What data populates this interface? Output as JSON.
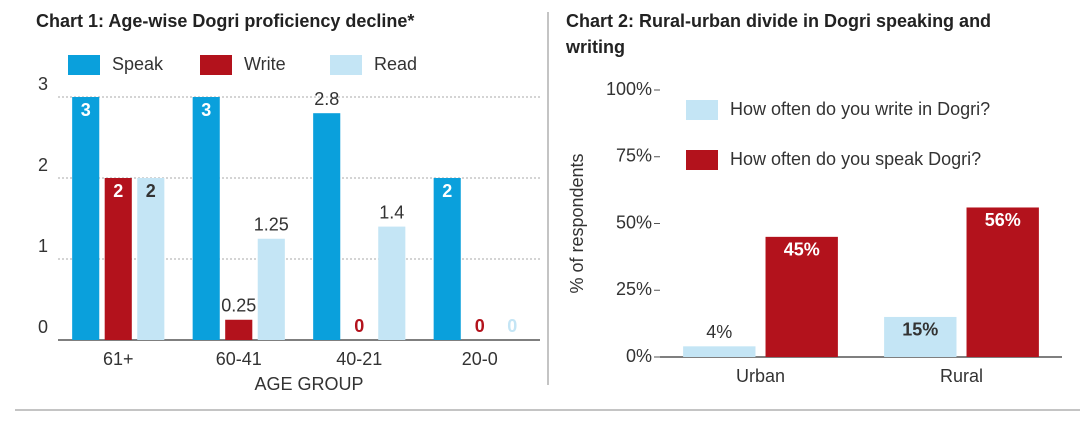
{
  "chart_data": [
    {
      "type": "bar",
      "title": "Chart 1: Age-wise Dogri proficiency decline*",
      "categories": [
        "61+",
        "60-41",
        "40-21",
        "20-0"
      ],
      "x_label": "AGE GROUP",
      "series": [
        {
          "name": "Speak",
          "color": "#0aa0dc",
          "values": [
            3,
            3,
            2.8,
            2
          ]
        },
        {
          "name": "Write",
          "color": "#b3121c",
          "values": [
            2,
            0.25,
            0,
            0
          ]
        },
        {
          "name": "Read",
          "color": "#c4e5f5",
          "values": [
            2,
            1.25,
            1.4,
            0
          ]
        }
      ],
      "ylim": [
        0,
        3
      ],
      "yticks": [
        0,
        1,
        2,
        3
      ],
      "grid": true,
      "legend": "top"
    },
    {
      "type": "bar",
      "title": "Chart 2: Rural-urban divide in Dogri speaking and writing",
      "categories": [
        "Urban",
        "Rural"
      ],
      "y_label": "% of respondents",
      "series": [
        {
          "name": "How often do you write in Dogri?",
          "color": "#c4e5f5",
          "values": [
            4,
            15
          ],
          "value_labels": [
            "4%",
            "15%"
          ]
        },
        {
          "name": "How often do you speak Dogri?",
          "color": "#b3121c",
          "values": [
            45,
            56
          ],
          "value_labels": [
            "45%",
            "56%"
          ]
        }
      ],
      "ylim": [
        0,
        100
      ],
      "yticks": [
        {
          "value": 0,
          "label": "0%"
        },
        {
          "value": 25,
          "label": "25%"
        },
        {
          "value": 50,
          "label": "50%"
        },
        {
          "value": 75,
          "label": "75%"
        },
        {
          "value": 100,
          "label": "100%"
        }
      ],
      "grid": false,
      "legend": "upper left"
    }
  ]
}
